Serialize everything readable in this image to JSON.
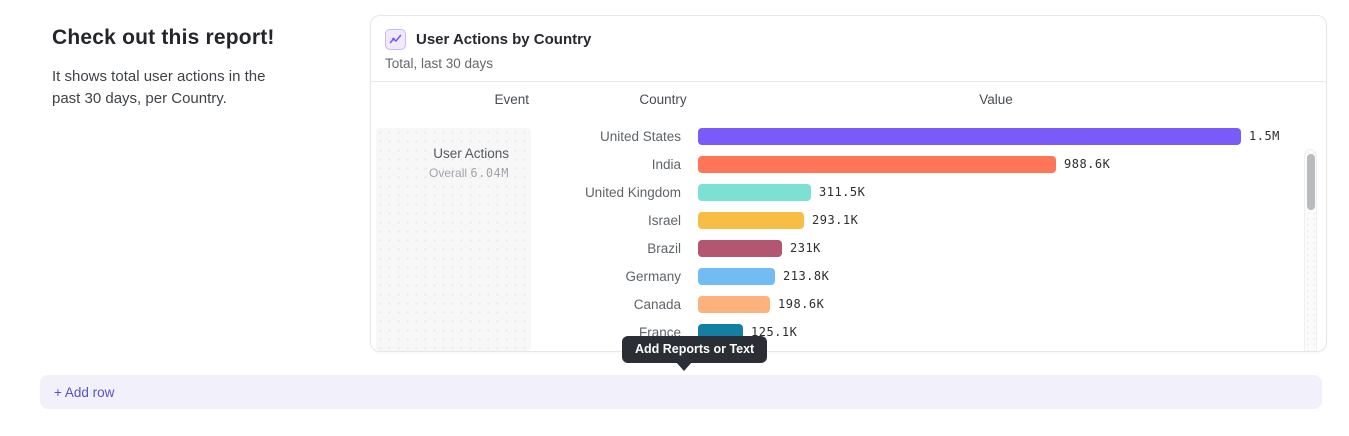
{
  "text_panel": {
    "heading": "Check out this report!",
    "description": "It shows total user actions in the past 30 days, per Country."
  },
  "report_card": {
    "icon": "line-chart-icon",
    "title": "User Actions by Country",
    "subtitle": "Total, last 30 days",
    "columns": {
      "event": "Event",
      "country": "Country",
      "value": "Value"
    },
    "event": {
      "name": "User Actions",
      "overall_label": "Overall",
      "overall_value": "6.04M"
    },
    "chart_data": {
      "type": "bar",
      "orientation": "horizontal",
      "title": "User Actions by Country",
      "subtitle": "Total, last 30 days",
      "categories": [
        "United States",
        "India",
        "United Kingdom",
        "Israel",
        "Brazil",
        "Germany",
        "Canada",
        "France"
      ],
      "values": [
        1500000,
        988600,
        311500,
        293100,
        231000,
        213800,
        198600,
        125100
      ],
      "value_labels": [
        "1.5M",
        "988.6K",
        "311.5K",
        "293.1K",
        "231K",
        "213.8K",
        "198.6K",
        "125.1K"
      ],
      "bar_colors": [
        "#7A5AF8",
        "#FF7557",
        "#7CE0D3",
        "#F7BD45",
        "#B25671",
        "#70BCF3",
        "#FDB27D",
        "#137FA3"
      ],
      "xlim": [
        0,
        1500000
      ],
      "grid": false,
      "legend": false
    }
  },
  "tooltip": {
    "text": "Add Reports or Text"
  },
  "add_row": {
    "label": "+ Add row",
    "accent_color": "#5552c5",
    "background_color": "#f2f0fb"
  }
}
